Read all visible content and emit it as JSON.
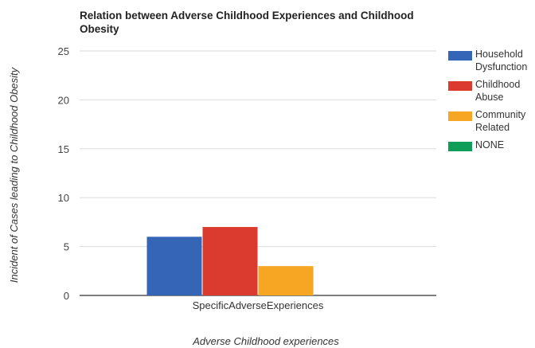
{
  "chart_data": {
    "type": "bar",
    "title": "Relation between Adverse Childhood Experiences and Childhood Obesity",
    "xlabel": "Adverse Childhood experiences",
    "ylabel": "Incident of Cases leading to Childhood Obesity",
    "categories": [
      "SpecificAdverseExperiences"
    ],
    "series": [
      {
        "name": "Household Dysfunction",
        "values": [
          6
        ],
        "color": "#3565b7"
      },
      {
        "name": "Childhood Abuse",
        "values": [
          7
        ],
        "color": "#db3b2f"
      },
      {
        "name": "Community Related",
        "values": [
          3
        ],
        "color": "#f6a623"
      },
      {
        "name": "NONE",
        "values": [
          0
        ],
        "color": "#109d58"
      }
    ],
    "ylim": [
      0,
      25
    ],
    "yticks": [
      0,
      5,
      10,
      15,
      20,
      25
    ],
    "grid": true,
    "legend_position": "right"
  }
}
